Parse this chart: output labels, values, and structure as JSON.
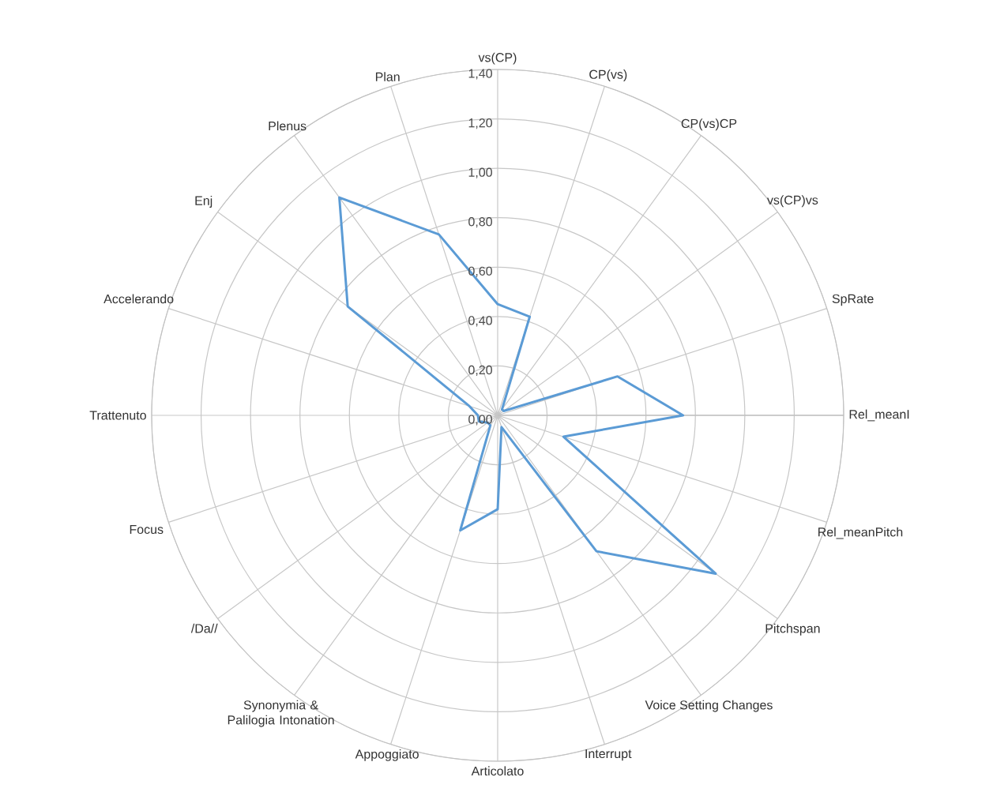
{
  "chart_data": {
    "type": "radar",
    "categories": [
      "vs(CP)",
      "CP(vs)",
      "CP(vs)CP",
      "vs(CP)vs",
      "SpRate",
      "Rel_meanI",
      "Rel_meanPitch",
      "Pitchspan",
      "Voice Setting Changes",
      "Interrupt",
      "Articolato",
      "Appoggiato",
      "Synonymia & Palilogia Intonation",
      "/Da//",
      "Focus",
      "Trattenuto",
      "Accelerando",
      "Enj",
      "Plenus",
      "Plan"
    ],
    "series": [
      {
        "color": "#5b9bd5",
        "values": [
          0.45,
          0.42,
          0.03,
          0.03,
          0.51,
          0.75,
          0.28,
          1.09,
          0.68,
          0.05,
          0.38,
          0.49,
          0.05,
          0.05,
          0.08,
          0.08,
          0.12,
          0.75,
          1.09,
          0.77
        ]
      }
    ],
    "ylim": [
      0,
      1.4
    ],
    "yticks": [
      {
        "value": 0,
        "label": "0,00"
      },
      {
        "value": 0.2,
        "label": "0,20"
      },
      {
        "value": 0.4,
        "label": "0,40"
      },
      {
        "value": 0.6,
        "label": "0,60"
      },
      {
        "value": 0.8,
        "label": "0,80"
      },
      {
        "value": 1.0,
        "label": "1,00"
      },
      {
        "value": 1.2,
        "label": "1,20"
      },
      {
        "value": 1.4,
        "label": "1,40"
      }
    ],
    "grid": true
  }
}
